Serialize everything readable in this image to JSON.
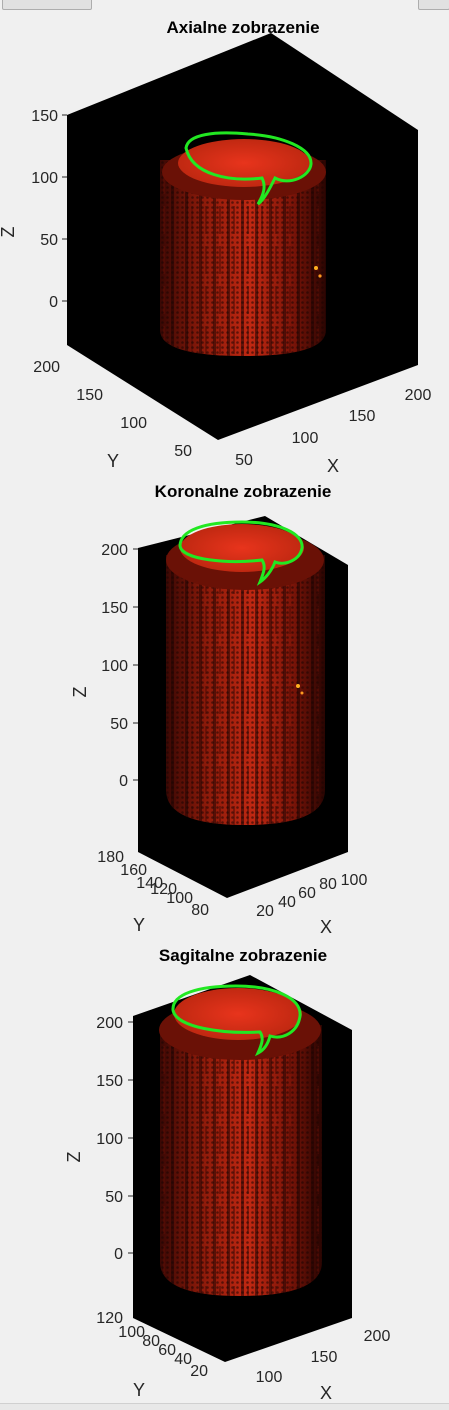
{
  "window": {
    "left_button": "",
    "right_button": ""
  },
  "chart_data": [
    {
      "type": "volume-3d",
      "title": "Axialne zobrazenie",
      "xlabel": "X",
      "ylabel": "Y",
      "zlabel": "Z",
      "x_ticks": [
        "50",
        "100",
        "150",
        "200"
      ],
      "y_ticks": [
        "50",
        "100",
        "150",
        "200"
      ],
      "z_ticks": [
        "0",
        "50",
        "100",
        "150"
      ],
      "colormap": [
        "#2a0502",
        "#7a1508",
        "#c22a12",
        "#e8341c",
        "#ff9a20"
      ],
      "contour_color": "#22e822",
      "background": "#000000"
    },
    {
      "type": "volume-3d",
      "title": "Koronalne zobrazenie",
      "xlabel": "X",
      "ylabel": "Y",
      "zlabel": "Z",
      "x_ticks": [
        "20",
        "40",
        "60",
        "80",
        "100"
      ],
      "y_ticks": [
        "80",
        "100",
        "120",
        "140",
        "160",
        "180"
      ],
      "z_ticks": [
        "0",
        "50",
        "100",
        "150",
        "200"
      ],
      "colormap": [
        "#2a0502",
        "#7a1508",
        "#c22a12",
        "#e8341c",
        "#ff9a20"
      ],
      "contour_color": "#22e822",
      "background": "#000000"
    },
    {
      "type": "volume-3d",
      "title": "Sagitalne zobrazenie",
      "xlabel": "X",
      "ylabel": "Y",
      "zlabel": "Z",
      "x_ticks": [
        "100",
        "150",
        "200"
      ],
      "y_ticks": [
        "20",
        "40",
        "60",
        "80",
        "100",
        "120"
      ],
      "z_ticks": [
        "0",
        "50",
        "100",
        "150",
        "200"
      ],
      "colormap": [
        "#2a0502",
        "#7a1508",
        "#c22a12",
        "#e8341c",
        "#ff9a20"
      ],
      "contour_color": "#22e822",
      "background": "#000000"
    }
  ]
}
